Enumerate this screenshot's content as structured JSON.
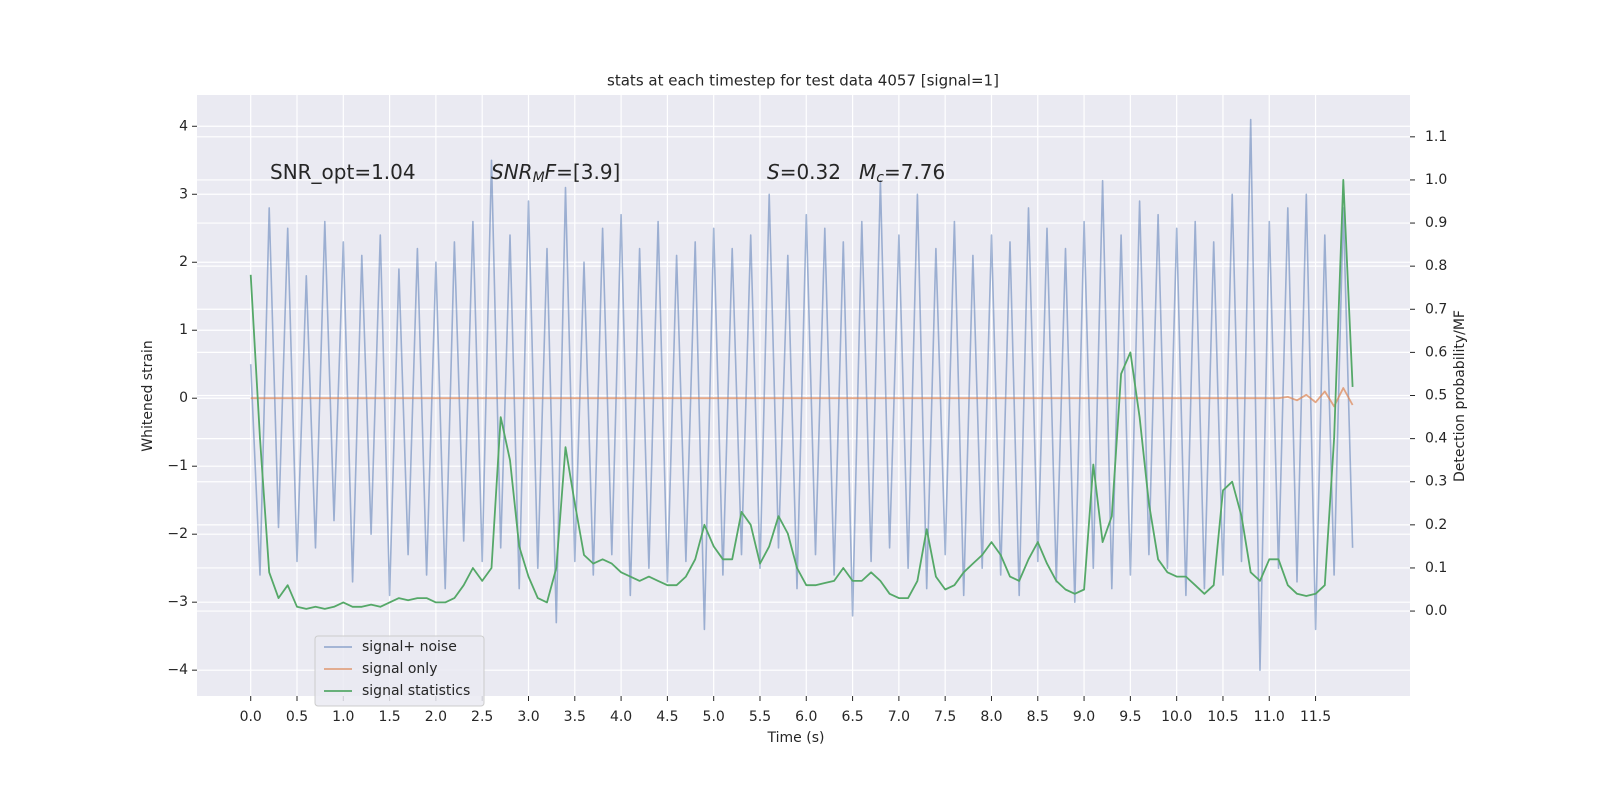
{
  "chart_data": {
    "type": "line",
    "title": "stats at each timestep for test data 4057 [signal=1]",
    "xlabel": "Time (s)",
    "ylabel": "Whitened strain",
    "y2label": "Detection probability/MF",
    "annotations": [
      {
        "parts": [
          "SNR_opt=1.04"
        ]
      },
      {
        "parts": [
          "SNR",
          "M",
          "F",
          "=[3.9]"
        ]
      },
      {
        "parts": [
          "S",
          "=0.32"
        ]
      },
      {
        "parts": [
          "M",
          "c",
          "=7.76"
        ]
      }
    ],
    "x": [
      0.0,
      0.1,
      0.2,
      0.3,
      0.4,
      0.5,
      0.6,
      0.7,
      0.8,
      0.9,
      1.0,
      1.1,
      1.2,
      1.3,
      1.4,
      1.5,
      1.6,
      1.7,
      1.8,
      1.9,
      2.0,
      2.1,
      2.2,
      2.3,
      2.4,
      2.5,
      2.6,
      2.7,
      2.8,
      2.9,
      3.0,
      3.1,
      3.2,
      3.3,
      3.4,
      3.5,
      3.6,
      3.7,
      3.8,
      3.9,
      4.0,
      4.1,
      4.2,
      4.3,
      4.4,
      4.5,
      4.6,
      4.7,
      4.8,
      4.9,
      5.0,
      5.1,
      5.2,
      5.3,
      5.4,
      5.5,
      5.6,
      5.7,
      5.8,
      5.9,
      6.0,
      6.1,
      6.2,
      6.3,
      6.4,
      6.5,
      6.6,
      6.7,
      6.8,
      6.9,
      7.0,
      7.1,
      7.2,
      7.3,
      7.4,
      7.5,
      7.6,
      7.7,
      7.8,
      7.9,
      8.0,
      8.1,
      8.2,
      8.3,
      8.4,
      8.5,
      8.6,
      8.7,
      8.8,
      8.9,
      9.0,
      9.1,
      9.2,
      9.3,
      9.4,
      9.5,
      9.6,
      9.7,
      9.8,
      9.9,
      10.0,
      10.1,
      10.2,
      10.3,
      10.4,
      10.5,
      10.6,
      10.7,
      10.8,
      10.9,
      11.0,
      11.1,
      11.2,
      11.3,
      11.4,
      11.5,
      11.6,
      11.7,
      11.8,
      11.9
    ],
    "series": [
      {
        "name": "signal+ noise",
        "color": "#4c72b0",
        "opacity": 0.5,
        "values": [
          0.5,
          -2.6,
          2.8,
          -1.9,
          2.5,
          -2.4,
          1.8,
          -2.2,
          2.6,
          -1.8,
          2.3,
          -2.7,
          2.1,
          -2.0,
          2.4,
          -2.9,
          1.9,
          -2.3,
          2.2,
          -2.6,
          2.0,
          -2.8,
          2.3,
          -2.1,
          2.6,
          -2.4,
          3.5,
          -2.2,
          2.4,
          -2.8,
          2.9,
          -2.5,
          2.2,
          -3.3,
          3.1,
          -2.4,
          2.0,
          -2.6,
          2.5,
          -2.3,
          2.7,
          -2.9,
          2.2,
          -2.5,
          2.6,
          -2.7,
          2.1,
          -2.4,
          2.3,
          -3.4,
          2.5,
          -2.6,
          2.2,
          -2.3,
          2.4,
          -2.5,
          3.0,
          -2.2,
          2.1,
          -2.8,
          2.7,
          -2.3,
          2.5,
          -2.6,
          2.3,
          -3.2,
          2.6,
          -2.4,
          3.2,
          -2.2,
          2.4,
          -2.5,
          3.0,
          -2.8,
          2.2,
          -2.3,
          2.6,
          -2.9,
          2.1,
          -2.5,
          2.4,
          -2.6,
          2.3,
          -2.9,
          2.8,
          -2.4,
          2.5,
          -2.7,
          2.2,
          -3.0,
          2.6,
          -2.5,
          3.2,
          -2.8,
          2.4,
          -2.6,
          2.9,
          -2.3,
          2.7,
          -2.5,
          2.5,
          -2.9,
          2.6,
          -2.8,
          2.3,
          -2.6,
          3.0,
          -2.4,
          4.1,
          -4.0,
          2.6,
          -2.5,
          2.8,
          -2.7,
          3.0,
          -3.4,
          2.4,
          -2.6,
          2.8,
          -2.2
        ]
      },
      {
        "name": "signal only",
        "color": "#dd8452",
        "opacity": 0.7,
        "values": [
          0,
          0,
          0,
          0,
          0,
          0,
          0,
          0,
          0,
          0,
          0,
          0,
          0,
          0,
          0,
          0,
          0,
          0,
          0,
          0,
          0,
          0,
          0,
          0,
          0,
          0,
          0,
          0,
          0,
          0,
          0,
          0,
          0,
          0,
          0,
          0,
          0,
          0,
          0,
          0,
          0,
          0,
          0,
          0,
          0,
          0,
          0,
          0,
          0,
          0,
          0,
          0,
          0,
          0,
          0,
          0,
          0,
          0,
          0,
          0,
          0,
          0,
          0,
          0,
          0,
          0,
          0,
          0,
          0,
          0,
          0,
          0,
          0,
          0,
          0,
          0,
          0,
          0,
          0,
          0,
          0,
          0,
          0,
          0,
          0,
          0,
          0,
          0,
          0,
          0,
          0,
          0,
          0,
          0,
          0,
          0,
          0,
          0,
          0,
          0,
          0,
          0,
          0,
          0,
          0,
          0,
          0,
          0,
          0,
          0,
          0,
          0,
          0.02,
          -0.03,
          0.05,
          -0.06,
          0.1,
          -0.12,
          0.15,
          -0.1
        ]
      },
      {
        "name": "signal statistics",
        "color": "#55a868",
        "opacity": 1,
        "axis": "y2",
        "values": [
          0.78,
          0.4,
          0.09,
          0.03,
          0.06,
          0.01,
          0.005,
          0.01,
          0.005,
          0.01,
          0.02,
          0.01,
          0.01,
          0.015,
          0.01,
          0.02,
          0.03,
          0.025,
          0.03,
          0.03,
          0.02,
          0.02,
          0.03,
          0.06,
          0.1,
          0.07,
          0.1,
          0.45,
          0.35,
          0.15,
          0.08,
          0.03,
          0.02,
          0.1,
          0.38,
          0.25,
          0.13,
          0.11,
          0.12,
          0.11,
          0.09,
          0.08,
          0.07,
          0.08,
          0.07,
          0.06,
          0.06,
          0.08,
          0.12,
          0.2,
          0.15,
          0.12,
          0.12,
          0.23,
          0.2,
          0.11,
          0.15,
          0.22,
          0.18,
          0.1,
          0.06,
          0.06,
          0.065,
          0.07,
          0.1,
          0.07,
          0.07,
          0.09,
          0.07,
          0.04,
          0.03,
          0.03,
          0.07,
          0.19,
          0.08,
          0.05,
          0.06,
          0.09,
          0.11,
          0.13,
          0.16,
          0.13,
          0.08,
          0.07,
          0.12,
          0.16,
          0.11,
          0.07,
          0.05,
          0.04,
          0.05,
          0.34,
          0.16,
          0.22,
          0.55,
          0.6,
          0.45,
          0.25,
          0.12,
          0.09,
          0.08,
          0.08,
          0.06,
          0.04,
          0.06,
          0.28,
          0.3,
          0.22,
          0.09,
          0.07,
          0.12,
          0.12,
          0.06,
          0.04,
          0.035,
          0.04,
          0.06,
          0.4,
          1.0,
          0.52
        ]
      }
    ],
    "xlim": [
      -0.58,
      12.52
    ],
    "ylim": [
      -4.38,
      4.46
    ],
    "y2lim": [
      -0.197,
      1.197
    ],
    "xticks": [
      {
        "value": 0,
        "label": "0.0"
      },
      0.5,
      {
        "value": 1,
        "label": "1.0"
      },
      1.5,
      {
        "value": 2,
        "label": "2.0"
      },
      2.5,
      {
        "value": 3,
        "label": "3.0"
      },
      3.5,
      {
        "value": 4,
        "label": "4.0"
      },
      4.5,
      {
        "value": 5,
        "label": "5.0"
      },
      5.5,
      {
        "value": 6,
        "label": "6.0"
      },
      6.5,
      {
        "value": 7,
        "label": "7.0"
      },
      7.5,
      {
        "value": 8,
        "label": "8.0"
      },
      8.5,
      {
        "value": 9,
        "label": "9.0"
      },
      9.5,
      {
        "value": 10,
        "label": "10.0"
      },
      10.5,
      {
        "value": 11,
        "label": "11.0"
      },
      11.5
    ],
    "yticks": [
      {
        "value": -4,
        "label": "−4"
      },
      {
        "value": -3,
        "label": "−3"
      },
      {
        "value": -2,
        "label": "−2"
      },
      {
        "value": -1,
        "label": "−1"
      },
      0,
      1,
      2,
      3,
      4
    ],
    "y2ticks": [
      {
        "value": 0,
        "label": "0.0"
      },
      0.1,
      0.2,
      0.3,
      0.4,
      0.5,
      0.6,
      0.7,
      0.8,
      0.9,
      {
        "value": 1,
        "label": "1.0"
      },
      1.1
    ],
    "grid": true,
    "legend": "lower left",
    "background": "#eaeaf2"
  }
}
